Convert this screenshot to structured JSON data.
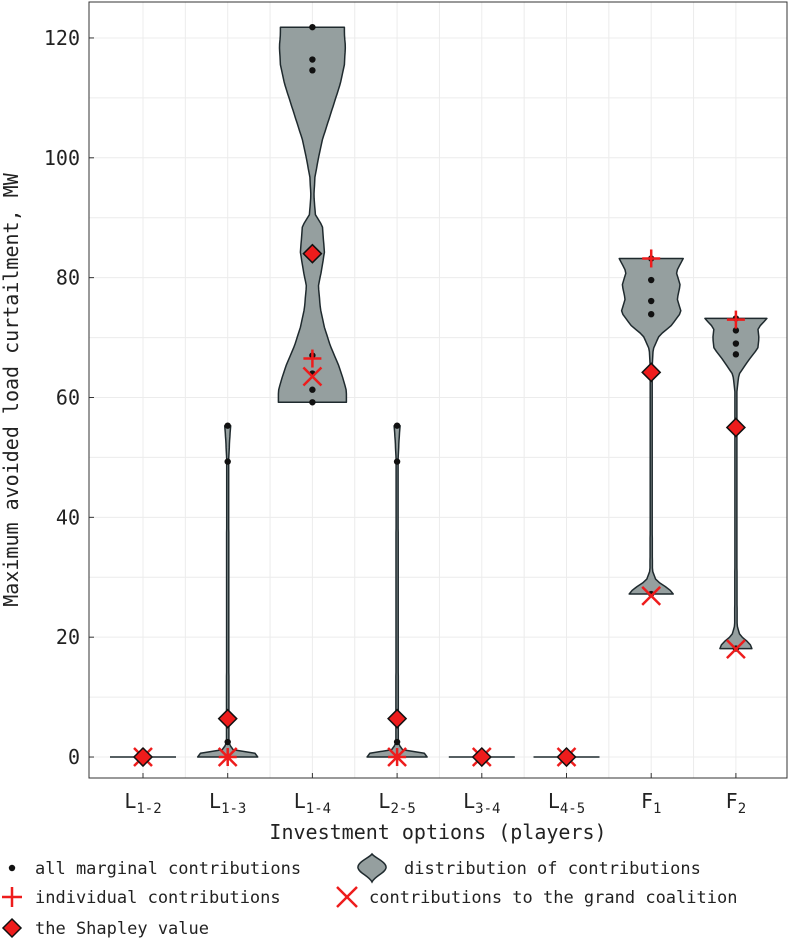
{
  "chart_data": {
    "type": "violin",
    "ylabel": "Maximum avoided load curtailment, MW",
    "xlabel": "Investment options (players)",
    "ylim": [
      -3.5,
      126
    ],
    "yticks": [
      0,
      20,
      40,
      60,
      80,
      100,
      120
    ],
    "grid": true,
    "categories": [
      {
        "base": "L",
        "sub": "1-2"
      },
      {
        "base": "L",
        "sub": "1-3"
      },
      {
        "base": "L",
        "sub": "1-4"
      },
      {
        "base": "L",
        "sub": "2-5"
      },
      {
        "base": "L",
        "sub": "3-4"
      },
      {
        "base": "L",
        "sub": "4-5"
      },
      {
        "base": "F",
        "sub": "1"
      },
      {
        "base": "F",
        "sub": "2"
      }
    ],
    "series": [
      {
        "name": "L1-2",
        "range": [
          0,
          0
        ],
        "marginal_contributions": [
          0
        ],
        "individual_contribution": 0,
        "grand_coalition_contribution": 0,
        "shapley_value": 0
      },
      {
        "name": "L1-3",
        "range": [
          0,
          55.3
        ],
        "marginal_contributions": [
          0,
          2.5,
          49.3,
          55.3
        ],
        "individual_contribution": 0,
        "grand_coalition_contribution": 0,
        "shapley_value": 6.4
      },
      {
        "name": "L1-4",
        "range": [
          59.2,
          121.8
        ],
        "marginal_contributions": [
          59.2,
          61.3,
          64.0,
          67.0,
          84.0,
          114.6,
          116.4,
          121.8
        ],
        "individual_contribution": 66.5,
        "grand_coalition_contribution": 63.5,
        "shapley_value": 84.0
      },
      {
        "name": "L2-5",
        "range": [
          0,
          55.3
        ],
        "marginal_contributions": [
          0,
          2.5,
          49.3,
          55.3
        ],
        "individual_contribution": 0,
        "grand_coalition_contribution": 0,
        "shapley_value": 6.4
      },
      {
        "name": "L3-4",
        "range": [
          0,
          0
        ],
        "marginal_contributions": [
          0
        ],
        "individual_contribution": 0,
        "grand_coalition_contribution": 0,
        "shapley_value": 0
      },
      {
        "name": "L4-5",
        "range": [
          0,
          0
        ],
        "marginal_contributions": [
          0
        ],
        "individual_contribution": 0,
        "grand_coalition_contribution": 0,
        "shapley_value": 0
      },
      {
        "name": "F1",
        "range": [
          27.2,
          83.2
        ],
        "marginal_contributions": [
          27.2,
          73.9,
          76.1,
          79.6,
          83.2
        ],
        "individual_contribution": 83.2,
        "grand_coalition_contribution": 26.9,
        "shapley_value": 64.2
      },
      {
        "name": "F2",
        "range": [
          18.1,
          73.2
        ],
        "marginal_contributions": [
          18.1,
          67.2,
          69.0,
          71.2,
          73.2
        ],
        "individual_contribution": 73.0,
        "grand_coalition_contribution": 18.0,
        "shapley_value": 55.0
      }
    ],
    "legend": {
      "position": "bottom",
      "entries": [
        {
          "key": "marginal",
          "label": "all marginal contributions"
        },
        {
          "key": "distribution",
          "label": "distribution of contributions"
        },
        {
          "key": "individual",
          "label": "individual contributions"
        },
        {
          "key": "grand",
          "label": "contributions to the grand coalition"
        },
        {
          "key": "shapley",
          "label": "the Shapley value"
        }
      ]
    },
    "colors": {
      "violin_fill": "#959f9f",
      "violin_stroke": "#1f2a2e",
      "marker_red": "#ee1c1c",
      "diamond_stroke": "#111111",
      "grid": "#ececec",
      "frame": "#333333"
    }
  }
}
